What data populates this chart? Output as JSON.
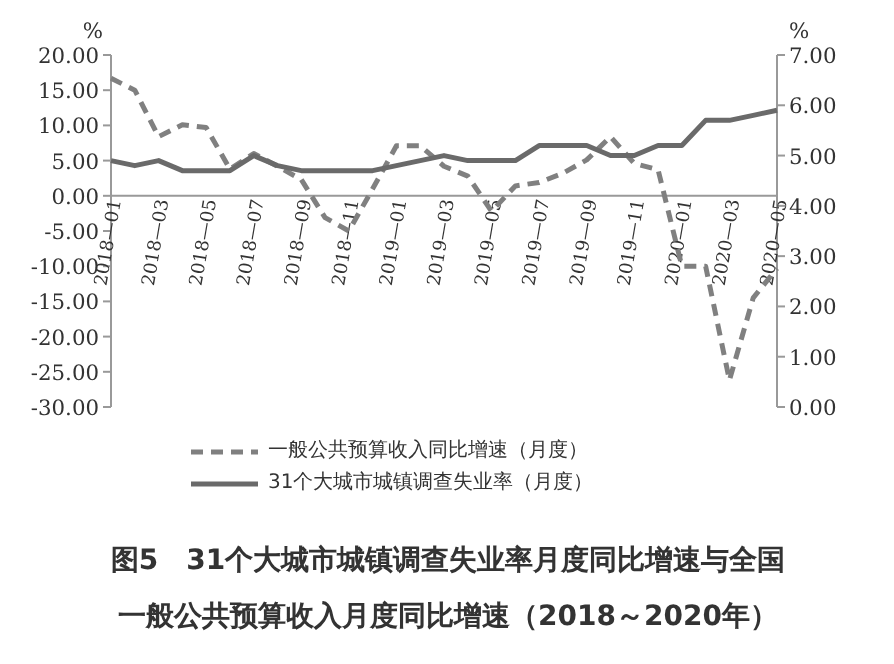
{
  "chart_data": {
    "type": "line",
    "title": "图5　31个大城市城镇调查失业率月度同比增速与全国一般公共预算收入月度同比增速（2018～2020年）",
    "categories": [
      "2018—01",
      null,
      "2018—03",
      null,
      "2018—05",
      null,
      "2018—07",
      null,
      "2018—09",
      null,
      "2018—11",
      null,
      "2019—01",
      null,
      "2019—03",
      null,
      "2019—05",
      null,
      "2019—07",
      null,
      "2019—09",
      null,
      "2019—11",
      null,
      "2020—01",
      null,
      "2020—03",
      null,
      "2020—05"
    ],
    "ylabel": "%",
    "y2label": "%",
    "ylim": [
      -30,
      20
    ],
    "yticks": [
      {
        "value": -30,
        "label": "-30.00"
      },
      {
        "value": -25,
        "label": "-25.00"
      },
      {
        "value": -20,
        "label": "-20.00"
      },
      {
        "value": -15,
        "label": "-15.00"
      },
      {
        "value": -10,
        "label": "-10.00"
      },
      {
        "value": -5,
        "label": "-5.00"
      },
      {
        "value": 0,
        "label": "0.00"
      },
      {
        "value": 5,
        "label": "5.00"
      },
      {
        "value": 10,
        "label": "10.00"
      },
      {
        "value": 15,
        "label": "15.00"
      },
      {
        "value": 20,
        "label": "20.00"
      }
    ],
    "y2lim": [
      0,
      7
    ],
    "y2ticks": [
      {
        "value": 0,
        "label": "0.00"
      },
      {
        "value": 1,
        "label": "1.00"
      },
      {
        "value": 2,
        "label": "2.00"
      },
      {
        "value": 3,
        "label": "3.00"
      },
      {
        "value": 4,
        "label": "4.00"
      },
      {
        "value": 5,
        "label": "5.00"
      },
      {
        "value": 6,
        "label": "6.00"
      },
      {
        "value": 7,
        "label": "7.00"
      }
    ],
    "series": [
      {
        "name": "一般公共预算收入同比增速（月度）",
        "color": "#808080",
        "line_style": "dashed",
        "values": [
          16.7,
          15.0,
          8.4,
          10.1,
          9.7,
          3.8,
          6.0,
          4.2,
          2.3,
          -3.1,
          -5.0,
          1.0,
          7.1,
          7.1,
          4.2,
          2.8,
          -2.2,
          1.4,
          1.9,
          3.2,
          5.1,
          8.4,
          4.6,
          3.7,
          -10.0,
          -10.0,
          -26.2,
          -14.5,
          -10.3
        ]
      },
      {
        "name": "31个大城市城镇调查失业率（月度）",
        "color": "#6a6a6a",
        "line_style": "solid",
        "axis": "y2",
        "values": [
          4.9,
          4.8,
          4.9,
          4.7,
          4.7,
          4.7,
          5.0,
          4.8,
          4.7,
          4.7,
          4.7,
          4.7,
          4.8,
          4.9,
          5.0,
          4.9,
          4.9,
          4.9,
          5.2,
          5.2,
          5.2,
          5.0,
          5.0,
          5.2,
          5.2,
          5.7,
          5.7,
          5.8,
          5.9
        ]
      }
    ],
    "legend": "bottom",
    "grid": false
  }
}
